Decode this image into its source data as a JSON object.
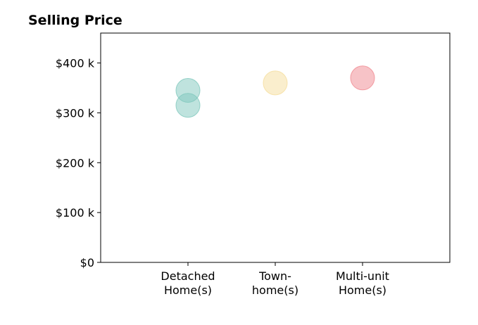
{
  "chart_data": {
    "type": "scatter",
    "title": "Selling Price",
    "xlabel": "",
    "ylabel": "",
    "categories": [
      [
        "Detached",
        "Home(s)"
      ],
      [
        "Town-",
        "home(s)"
      ],
      [
        "Multi-unit",
        "Home(s)"
      ]
    ],
    "y_ticks": [
      0,
      100000,
      200000,
      300000,
      400000
    ],
    "y_tick_labels": [
      "$0",
      "$100 k",
      "$200 k",
      "$300 k",
      "$400 k"
    ],
    "ylim": [
      0,
      460000
    ],
    "xlim": [
      -1,
      3
    ],
    "grid": false,
    "points": [
      {
        "category": 0,
        "value": 345000,
        "color": "#7fc8bd"
      },
      {
        "category": 0,
        "value": 315000,
        "color": "#7fc8bd"
      },
      {
        "category": 1,
        "value": 360000,
        "color": "#f5dd9c"
      },
      {
        "category": 2,
        "value": 370000,
        "color": "#f08890"
      }
    ]
  }
}
